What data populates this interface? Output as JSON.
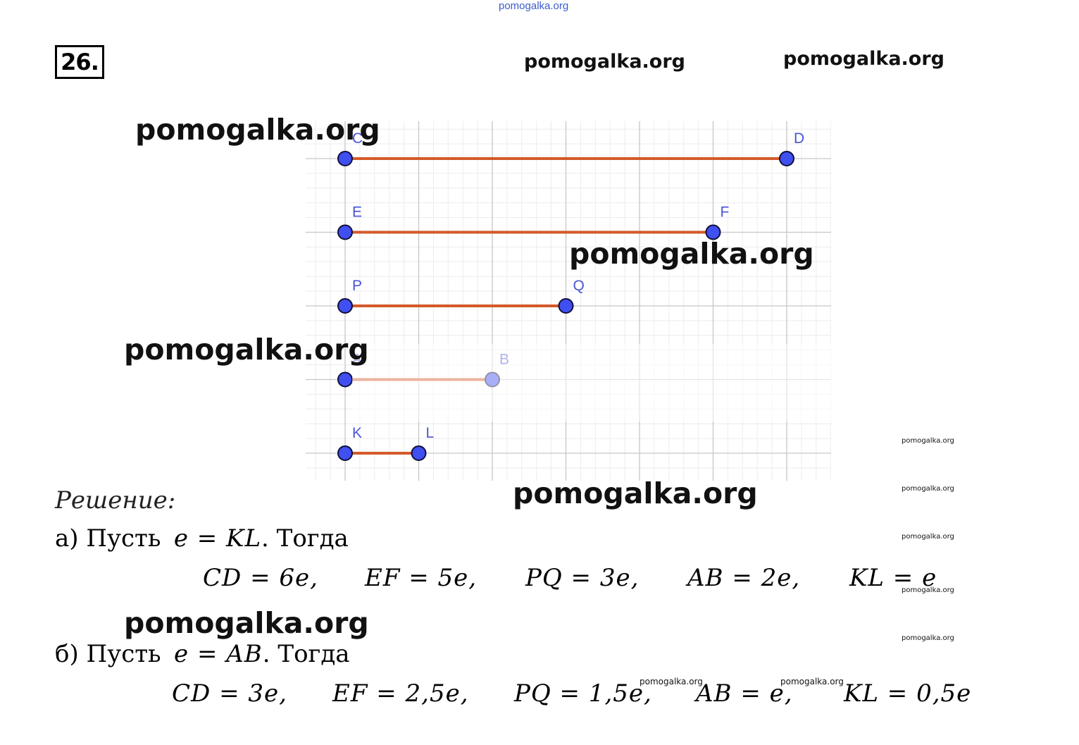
{
  "watermarks": {
    "top": "pomogalka.org",
    "header_1": "pomogalka.org",
    "header_2": "pomogalka.org",
    "big_1": "pomogalka.org",
    "big_2": "pomogalka.org",
    "big_3": "pomogalka.org",
    "big_4": "pomogalka.org",
    "big_5": "pomogalka.org",
    "small_1": "pomogalka.org",
    "small_2": "pomogalka.org",
    "small_3": "pomogalka.org",
    "small_4": "pomogalka.org",
    "small_5": "pomogalka.org",
    "small_6": "pomogalka.org",
    "small_7": "pomogalka.org"
  },
  "problem_number": "26.",
  "figure": {
    "segments": [
      {
        "start_label": "C",
        "end_label": "D",
        "length": 6
      },
      {
        "start_label": "E",
        "end_label": "F",
        "length": 5
      },
      {
        "start_label": "P",
        "end_label": "Q",
        "length": 3
      },
      {
        "start_label": "A",
        "end_label": "B",
        "length": 2
      },
      {
        "start_label": "K",
        "end_label": "L",
        "length": 1
      }
    ],
    "colors": {
      "segment": "#d45a2a",
      "point": "#3f4ff0",
      "point_stroke": "#10103a",
      "label": "#4a56d6",
      "grid_major": "#c6c6c6",
      "grid_minor": "#ececec"
    }
  },
  "solution": {
    "heading": "Решение:",
    "part_a": {
      "prefix": "а) Пусть",
      "assign": "e = KL",
      "suffix": ". Тогда",
      "results": [
        "CD = 6e,",
        "EF = 5e,",
        "PQ = 3e,",
        "AB = 2e,",
        "KL = e"
      ]
    },
    "part_b": {
      "prefix": "б) Пусть",
      "assign": "e = AB",
      "suffix": ". Тогда",
      "results": [
        "CD = 3e,",
        "EF = 2,5e,",
        "PQ = 1,5e,",
        "AB = e,",
        "KL = 0,5e"
      ]
    }
  }
}
